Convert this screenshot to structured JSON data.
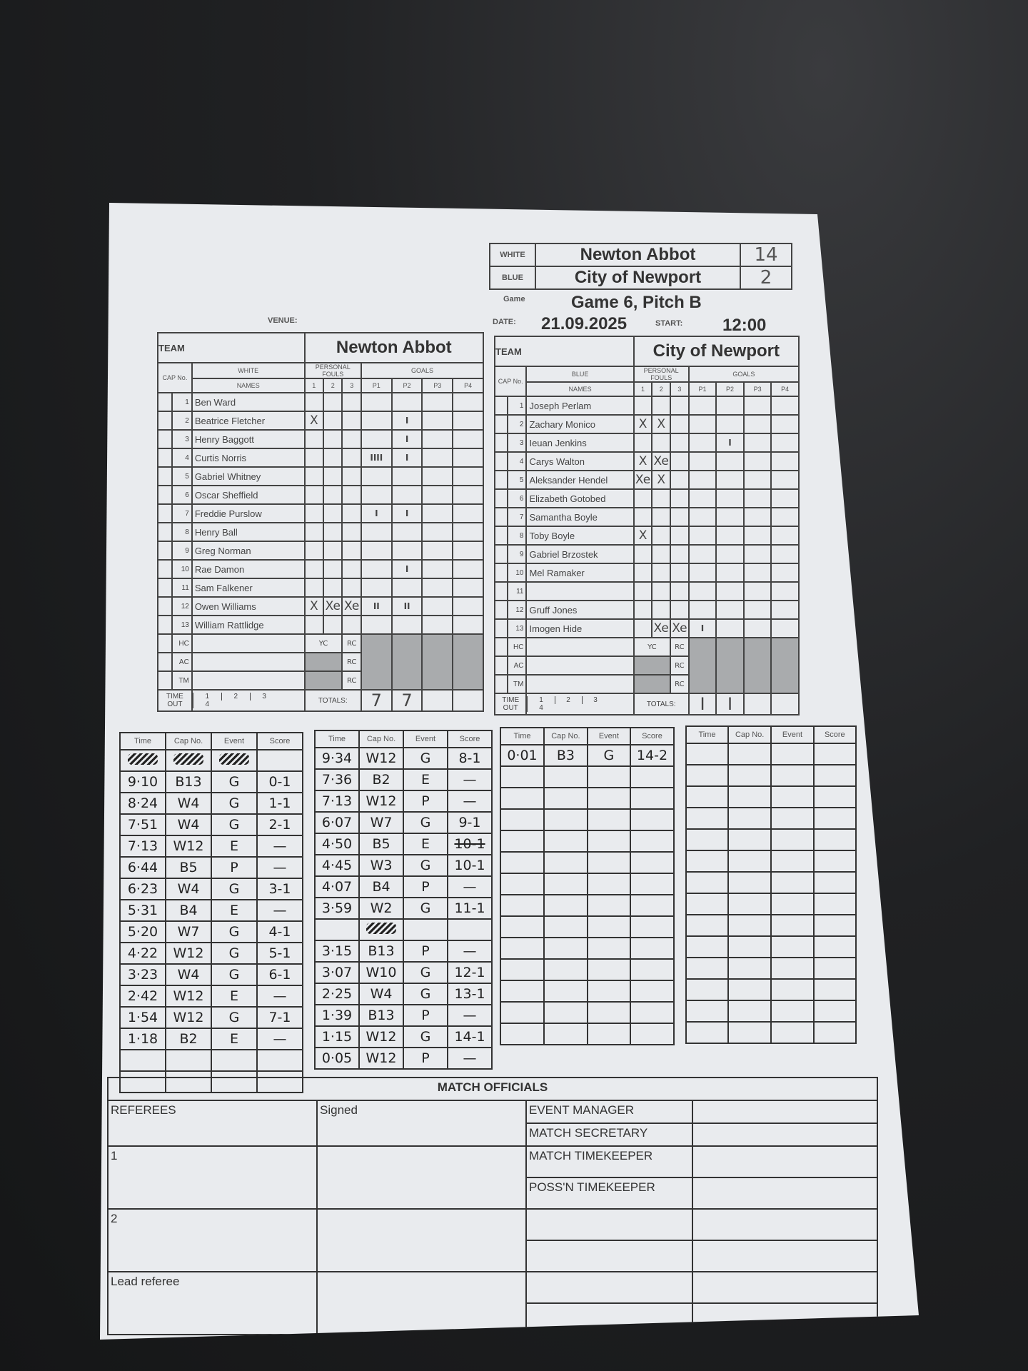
{
  "header": {
    "white_label": "WHITE",
    "white_team": "Newton Abbot",
    "white_score": "14",
    "blue_label": "BLUE",
    "blue_team": "City of Newport",
    "blue_score": "2",
    "game_label": "Game",
    "game": "Game 6, Pitch B",
    "venue_label": "VENUE:",
    "date_label": "DATE:",
    "date": "21.09.2025",
    "start_label": "START:",
    "start": "12:00"
  },
  "labels": {
    "team": "TEAM",
    "cap": "CAP No.",
    "names": "NAMES",
    "fouls": "PERSONAL FOULS",
    "goals": "GOALS",
    "foul_cols": [
      "1",
      "2",
      "3"
    ],
    "goal_cols": [
      "P1",
      "P2",
      "P3",
      "P4"
    ],
    "officials_rows": [
      "HC",
      "AC",
      "TM"
    ],
    "yc": "YC",
    "rc": "RC",
    "timeout": "TIME OUT",
    "timeout_cols": [
      "1",
      "2",
      "3",
      "4"
    ],
    "totals": "TOTALS:",
    "log_cols": [
      "Time",
      "Cap No.",
      "Event",
      "Score"
    ]
  },
  "white": {
    "colour": "WHITE",
    "name": "Newton Abbot",
    "players": [
      {
        "cap": "1",
        "name": "Ben Ward",
        "fouls": [
          "",
          "",
          ""
        ],
        "goals": [
          "",
          "",
          "",
          ""
        ]
      },
      {
        "cap": "2",
        "name": "Beatrice Fletcher",
        "fouls": [
          "X",
          "",
          ""
        ],
        "goals": [
          "",
          "I",
          "",
          ""
        ]
      },
      {
        "cap": "3",
        "name": "Henry Baggott",
        "fouls": [
          "",
          "",
          ""
        ],
        "goals": [
          "",
          "I",
          "",
          ""
        ]
      },
      {
        "cap": "4",
        "name": "Curtis Norris",
        "fouls": [
          "",
          "",
          ""
        ],
        "goals": [
          "IIII",
          "I",
          "",
          ""
        ]
      },
      {
        "cap": "5",
        "name": "Gabriel Whitney",
        "fouls": [
          "",
          "",
          ""
        ],
        "goals": [
          "",
          "",
          "",
          ""
        ]
      },
      {
        "cap": "6",
        "name": "Oscar Sheffield",
        "fouls": [
          "",
          "",
          ""
        ],
        "goals": [
          "",
          "",
          "",
          ""
        ]
      },
      {
        "cap": "7",
        "name": "Freddie Purslow",
        "fouls": [
          "",
          "",
          ""
        ],
        "goals": [
          "I",
          "I",
          "",
          ""
        ]
      },
      {
        "cap": "8",
        "name": "Henry Ball",
        "fouls": [
          "",
          "",
          ""
        ],
        "goals": [
          "",
          "",
          "",
          ""
        ]
      },
      {
        "cap": "9",
        "name": "Greg Norman",
        "fouls": [
          "",
          "",
          ""
        ],
        "goals": [
          "",
          "",
          "",
          ""
        ]
      },
      {
        "cap": "10",
        "name": "Rae Damon",
        "fouls": [
          "",
          "",
          ""
        ],
        "goals": [
          "",
          "I",
          "",
          ""
        ]
      },
      {
        "cap": "11",
        "name": "Sam Falkener",
        "fouls": [
          "",
          "",
          ""
        ],
        "goals": [
          "",
          "",
          "",
          ""
        ]
      },
      {
        "cap": "12",
        "name": "Owen Williams",
        "fouls": [
          "X",
          "Xe",
          "Xe"
        ],
        "goals": [
          "II",
          "II",
          "",
          ""
        ]
      },
      {
        "cap": "13",
        "name": "William Rattlidge",
        "fouls": [
          "",
          "",
          ""
        ],
        "goals": [
          "",
          "",
          "",
          ""
        ]
      }
    ],
    "totals": [
      "7",
      "7",
      "",
      ""
    ]
  },
  "blue": {
    "colour": "BLUE",
    "name": "City of Newport",
    "players": [
      {
        "cap": "1",
        "name": "Joseph Perlam",
        "fouls": [
          "",
          "",
          ""
        ],
        "goals": [
          "",
          "",
          "",
          ""
        ]
      },
      {
        "cap": "2",
        "name": "Zachary Monico",
        "fouls": [
          "X",
          "X",
          ""
        ],
        "goals": [
          "",
          "",
          "",
          ""
        ]
      },
      {
        "cap": "3",
        "name": "Ieuan Jenkins",
        "fouls": [
          "",
          "",
          ""
        ],
        "goals": [
          "",
          "I",
          "",
          ""
        ]
      },
      {
        "cap": "4",
        "name": "Carys Walton",
        "fouls": [
          "X",
          "Xe",
          ""
        ],
        "goals": [
          "",
          "",
          "",
          ""
        ]
      },
      {
        "cap": "5",
        "name": "Aleksander Hendel",
        "fouls": [
          "Xe",
          "X",
          ""
        ],
        "goals": [
          "",
          "",
          "",
          ""
        ]
      },
      {
        "cap": "6",
        "name": "Elizabeth Gotobed",
        "fouls": [
          "",
          "",
          ""
        ],
        "goals": [
          "",
          "",
          "",
          ""
        ]
      },
      {
        "cap": "7",
        "name": "Samantha Boyle",
        "fouls": [
          "",
          "",
          ""
        ],
        "goals": [
          "",
          "",
          "",
          ""
        ]
      },
      {
        "cap": "8",
        "name": "Toby Boyle",
        "fouls": [
          "X",
          "",
          ""
        ],
        "goals": [
          "",
          "",
          "",
          ""
        ]
      },
      {
        "cap": "9",
        "name": "Gabriel Brzostek",
        "fouls": [
          "",
          "",
          ""
        ],
        "goals": [
          "",
          "",
          "",
          ""
        ]
      },
      {
        "cap": "10",
        "name": "Mel Ramaker",
        "fouls": [
          "",
          "",
          ""
        ],
        "goals": [
          "",
          "",
          "",
          ""
        ]
      },
      {
        "cap": "11",
        "name": "",
        "fouls": [
          "",
          "",
          ""
        ],
        "goals": [
          "",
          "",
          "",
          ""
        ]
      },
      {
        "cap": "12",
        "name": "Gruff Jones",
        "fouls": [
          "",
          "",
          ""
        ],
        "goals": [
          "",
          "",
          "",
          ""
        ]
      },
      {
        "cap": "13",
        "name": "Imogen Hide",
        "fouls": [
          "",
          "Xe",
          "Xe"
        ],
        "goals": [
          "I",
          "",
          "",
          ""
        ]
      }
    ],
    "totals": [
      "I",
      "I",
      "",
      ""
    ]
  },
  "logs": [
    {
      "rows": [
        {
          "struck": true,
          "time": "",
          "cap": "",
          "event": "",
          "score": ""
        },
        {
          "time": "9·10",
          "cap": "B13",
          "event": "G",
          "score": "0-1"
        },
        {
          "time": "8·24",
          "cap": "W4",
          "event": "G",
          "score": "1-1"
        },
        {
          "time": "7·51",
          "cap": "W4",
          "event": "G",
          "score": "2-1"
        },
        {
          "time": "7·13",
          "cap": "W12",
          "event": "E",
          "score": "—"
        },
        {
          "time": "6·44",
          "cap": "B5",
          "event": "P",
          "score": "—"
        },
        {
          "time": "6·23",
          "cap": "W4",
          "event": "G",
          "score": "3-1"
        },
        {
          "time": "5·31",
          "cap": "B4",
          "event": "E",
          "score": "—"
        },
        {
          "time": "5·20",
          "cap": "W7",
          "event": "G",
          "score": "4-1"
        },
        {
          "time": "4·22",
          "cap": "W12",
          "event": "G",
          "score": "5-1"
        },
        {
          "time": "3·23",
          "cap": "W4",
          "event": "G",
          "score": "6-1"
        },
        {
          "time": "2·42",
          "cap": "W12",
          "event": "E",
          "score": "—"
        },
        {
          "time": "1·54",
          "cap": "W12",
          "event": "G",
          "score": "7-1"
        },
        {
          "time": "1·18",
          "cap": "B2",
          "event": "E",
          "score": "—"
        },
        {
          "time": "",
          "cap": "",
          "event": "",
          "score": ""
        },
        {
          "time": "",
          "cap": "",
          "event": "",
          "score": ""
        }
      ]
    },
    {
      "rows": [
        {
          "time": "9·34",
          "cap": "W12",
          "event": "G",
          "score": "8-1"
        },
        {
          "time": "7·36",
          "cap": "B2",
          "event": "E",
          "score": "—"
        },
        {
          "time": "7·13",
          "cap": "W12",
          "event": "P",
          "score": "—"
        },
        {
          "time": "6·07",
          "cap": "W7",
          "event": "G",
          "score": "9-1"
        },
        {
          "time": "4·50",
          "cap": "B5",
          "event": "E",
          "score": "10-1",
          "score_struck": true
        },
        {
          "time": "4·45",
          "cap": "W3",
          "event": "G",
          "score": "10-1"
        },
        {
          "time": "4·07",
          "cap": "B4",
          "event": "P",
          "score": "—"
        },
        {
          "time": "3·59",
          "cap": "W2",
          "event": "G",
          "score": "11-1"
        },
        {
          "struck": true,
          "time": "",
          "cap": "",
          "event": "",
          "score": ""
        },
        {
          "time": "3·15",
          "cap": "B13",
          "event": "P",
          "score": "—"
        },
        {
          "time": "3·07",
          "cap": "W10",
          "event": "G",
          "score": "12-1"
        },
        {
          "time": "2·25",
          "cap": "W4",
          "event": "G",
          "score": "13-1"
        },
        {
          "time": "1·39",
          "cap": "B13",
          "event": "P",
          "score": "—"
        },
        {
          "time": "1·15",
          "cap": "W12",
          "event": "G",
          "score": "14-1"
        },
        {
          "time": "0·05",
          "cap": "W12",
          "event": "P",
          "score": "—"
        }
      ]
    },
    {
      "rows": [
        {
          "time": "0·01",
          "cap": "B3",
          "event": "G",
          "score": "14-2"
        },
        {
          "time": "",
          "cap": "",
          "event": "",
          "score": ""
        },
        {
          "time": "",
          "cap": "",
          "event": "",
          "score": ""
        },
        {
          "time": "",
          "cap": "",
          "event": "",
          "score": ""
        },
        {
          "time": "",
          "cap": "",
          "event": "",
          "score": ""
        },
        {
          "time": "",
          "cap": "",
          "event": "",
          "score": ""
        },
        {
          "time": "",
          "cap": "",
          "event": "",
          "score": ""
        },
        {
          "time": "",
          "cap": "",
          "event": "",
          "score": ""
        },
        {
          "time": "",
          "cap": "",
          "event": "",
          "score": ""
        },
        {
          "time": "",
          "cap": "",
          "event": "",
          "score": ""
        },
        {
          "time": "",
          "cap": "",
          "event": "",
          "score": ""
        },
        {
          "time": "",
          "cap": "",
          "event": "",
          "score": ""
        },
        {
          "time": "",
          "cap": "",
          "event": "",
          "score": ""
        },
        {
          "time": "",
          "cap": "",
          "event": "",
          "score": ""
        }
      ]
    },
    {
      "rows": [
        {
          "time": "",
          "cap": "",
          "event": "",
          "score": ""
        },
        {
          "time": "",
          "cap": "",
          "event": "",
          "score": ""
        },
        {
          "time": "",
          "cap": "",
          "event": "",
          "score": ""
        },
        {
          "time": "",
          "cap": "",
          "event": "",
          "score": ""
        },
        {
          "time": "",
          "cap": "",
          "event": "",
          "score": ""
        },
        {
          "time": "",
          "cap": "",
          "event": "",
          "score": ""
        },
        {
          "time": "",
          "cap": "",
          "event": "",
          "score": ""
        },
        {
          "time": "",
          "cap": "",
          "event": "",
          "score": ""
        },
        {
          "time": "",
          "cap": "",
          "event": "",
          "score": ""
        },
        {
          "time": "",
          "cap": "",
          "event": "",
          "score": ""
        },
        {
          "time": "",
          "cap": "",
          "event": "",
          "score": ""
        },
        {
          "time": "",
          "cap": "",
          "event": "",
          "score": ""
        },
        {
          "time": "",
          "cap": "",
          "event": "",
          "score": ""
        },
        {
          "time": "",
          "cap": "",
          "event": "",
          "score": ""
        }
      ]
    }
  ],
  "officials": {
    "title": "MATCH OFFICIALS",
    "referees": "REFEREES",
    "signed": "Signed",
    "ref1": "1",
    "ref2": "2",
    "lead": "Lead referee",
    "roles": [
      "EVENT MANAGER",
      "MATCH SECRETARY",
      "MATCH TIMEKEEPER",
      "POSS'N TIMEKEEPER",
      "",
      "",
      "",
      ""
    ]
  },
  "colors": {
    "paper": "#e9ebee",
    "background": "#1c1d1f",
    "shaded_cell": "#a9abad"
  }
}
